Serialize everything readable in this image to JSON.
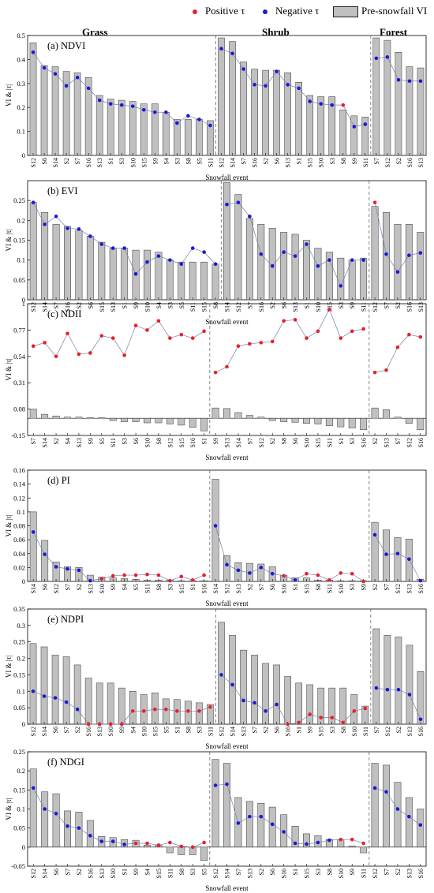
{
  "legend": {
    "positive_label": "Positive τ",
    "negative_label": "Negative τ",
    "pre_label": "Pre-snowfall VI",
    "positive_color": "#e8202a",
    "negative_color": "#1a1ad6",
    "bar_color": "#c0c0c0"
  },
  "columns": [
    "Grass",
    "Shrub",
    "Forest"
  ],
  "xlabel": "Snowfall event",
  "ylabel": "VI & |τ|",
  "chart_data": [
    {
      "type": "bar",
      "title": "(a) NDVI",
      "ylim": [
        0,
        0.5
      ],
      "yticks": [
        "0",
        "0.1",
        "0.2",
        "0.3",
        "0.4",
        "0.5"
      ],
      "yticks_values": [
        0,
        0.1,
        0.2,
        0.3,
        0.4,
        0.5
      ],
      "groups": [
        {
          "name": "Grass",
          "categories": [
            "S12",
            "S6",
            "S14",
            "S2",
            "S7",
            "S16",
            "S13",
            "S1",
            "S3",
            "S10",
            "S15",
            "S9",
            "S4",
            "S3",
            "S8",
            "S5",
            "S11"
          ],
          "bars": [
            0.47,
            0.375,
            0.37,
            0.35,
            0.345,
            0.325,
            0.25,
            0.235,
            0.23,
            0.225,
            0.215,
            0.215,
            0.18,
            0.15,
            0.15,
            0.15,
            0.145
          ],
          "tau": [
            -0.43,
            -0.365,
            -0.34,
            -0.29,
            -0.325,
            -0.28,
            -0.23,
            -0.215,
            -0.21,
            -0.205,
            -0.19,
            -0.18,
            -0.18,
            -0.135,
            -0.165,
            -0.15,
            -0.125
          ]
        },
        {
          "name": "Shrub",
          "categories": [
            "S12",
            "S14",
            "S7",
            "S16",
            "S2",
            "S6",
            "S13",
            "S1",
            "S15",
            "S10",
            "S3",
            "S8",
            "S9",
            "S11"
          ],
          "bars": [
            0.49,
            0.475,
            0.39,
            0.36,
            0.355,
            0.355,
            0.345,
            0.305,
            0.25,
            0.245,
            0.245,
            0.19,
            0.165,
            0.16
          ],
          "tau": [
            -0.445,
            -0.425,
            -0.36,
            -0.295,
            -0.29,
            -0.35,
            -0.295,
            -0.28,
            -0.225,
            -0.215,
            -0.21,
            0.21,
            -0.12,
            -0.13
          ]
        },
        {
          "name": "Forest",
          "categories": [
            "S7",
            "S12",
            "S2",
            "S16",
            "S13"
          ],
          "bars": [
            0.49,
            0.48,
            0.43,
            0.37,
            0.365
          ],
          "tau": [
            -0.405,
            -0.41,
            -0.315,
            -0.31,
            -0.31
          ]
        }
      ]
    },
    {
      "type": "bar",
      "title": "(b) EVI",
      "ylim": [
        0,
        0.3
      ],
      "yticks": [
        "0",
        "0.05",
        "0.1",
        "0.15",
        "0.2",
        "0.25"
      ],
      "yticks_values": [
        0,
        0.05,
        0.1,
        0.15,
        0.2,
        0.25
      ],
      "groups": [
        {
          "name": "Grass",
          "categories": [
            "S12",
            "S14",
            "S7",
            "S16",
            "S2",
            "S6",
            "S15",
            "S13",
            "S1",
            "S9",
            "S10",
            "S4",
            "S3",
            "S5",
            "S11",
            "S15",
            "S8"
          ],
          "bars": [
            0.245,
            0.22,
            0.19,
            0.185,
            0.175,
            0.16,
            0.145,
            0.13,
            0.13,
            0.125,
            0.125,
            0.12,
            0.1,
            0.095,
            0.095,
            0.095,
            0.09
          ],
          "tau": [
            -0.245,
            -0.19,
            -0.21,
            -0.18,
            -0.178,
            -0.16,
            -0.14,
            -0.13,
            -0.13,
            -0.065,
            -0.095,
            -0.11,
            -0.1,
            -0.09,
            -0.13,
            -0.12,
            -0.09
          ]
        },
        {
          "name": "Shrub",
          "categories": [
            "S14",
            "S12",
            "S7",
            "S16",
            "S2",
            "S6",
            "S13",
            "S1",
            "S10",
            "S15",
            "S3",
            "S9",
            "S11"
          ],
          "bars": [
            0.295,
            0.265,
            0.205,
            0.19,
            0.18,
            0.17,
            0.165,
            0.15,
            0.13,
            0.12,
            0.105,
            0.1,
            0.105
          ],
          "tau": [
            -0.24,
            -0.245,
            -0.21,
            -0.115,
            -0.085,
            -0.12,
            -0.11,
            -0.14,
            -0.085,
            -0.1,
            -0.035,
            -0.1,
            -0.1
          ]
        },
        {
          "name": "Forest",
          "categories": [
            "S12",
            "S7",
            "S2",
            "S16",
            "S13"
          ],
          "bars": [
            0.235,
            0.22,
            0.19,
            0.19,
            0.17
          ],
          "tau": [
            0.245,
            -0.115,
            -0.07,
            -0.112,
            -0.118
          ]
        }
      ]
    },
    {
      "type": "bar",
      "title": "(c) NDII",
      "ylim": [
        -0.15,
        1
      ],
      "yticks": [
        "-0.15",
        "0.08",
        "0.31",
        "0.54",
        "0.77",
        "1"
      ],
      "yticks_values": [
        -0.15,
        0.08,
        0.31,
        0.54,
        0.77,
        1
      ],
      "groups": [
        {
          "name": "Grass",
          "categories": [
            "S7",
            "S14",
            "S2",
            "S4",
            "S13",
            "S9",
            "S5",
            "S11",
            "S3",
            "S6",
            "S10",
            "S8",
            "S12",
            "S15",
            "S16",
            "S1"
          ],
          "bars": [
            0.08,
            0.035,
            0.02,
            0.01,
            0.01,
            0.005,
            0.005,
            -0.02,
            -0.03,
            -0.03,
            -0.04,
            -0.04,
            -0.05,
            -0.06,
            -0.08,
            -0.11
          ],
          "tau": [
            0.63,
            0.66,
            0.54,
            0.74,
            0.56,
            0.57,
            0.72,
            0.7,
            0.55,
            0.81,
            0.77,
            0.85,
            0.7,
            0.73,
            0.7,
            0.76
          ]
        },
        {
          "name": "Shrub",
          "categories": [
            "S9",
            "S13",
            "S14",
            "S7",
            "S12",
            "S2",
            "S8",
            "S6",
            "S10",
            "S15",
            "S11",
            "S1",
            "S3",
            "S16"
          ],
          "bars": [
            0.09,
            0.085,
            0.05,
            0.025,
            0.01,
            -0.02,
            -0.03,
            -0.035,
            -0.045,
            -0.05,
            -0.065,
            -0.075,
            -0.085,
            -0.1
          ],
          "tau": [
            0.4,
            0.45,
            0.63,
            0.65,
            0.66,
            0.67,
            0.85,
            0.86,
            0.7,
            0.76,
            0.95,
            0.7,
            0.76,
            0.78
          ]
        },
        {
          "name": "Forest",
          "categories": [
            "S2",
            "S13",
            "S7",
            "S12",
            "S16"
          ],
          "bars": [
            0.09,
            0.075,
            0.01,
            -0.045,
            -0.1
          ],
          "tau": [
            0.4,
            0.42,
            0.62,
            0.73,
            0.71
          ]
        }
      ]
    },
    {
      "type": "bar",
      "title": "(d) PI",
      "ylim": [
        0,
        0.16
      ],
      "yticks": [
        "0",
        "0.02",
        "0.04",
        "0.06",
        "0.08",
        "0.1",
        "0.12",
        "0.14",
        "0.16"
      ],
      "yticks_values": [
        0,
        0.02,
        0.04,
        0.06,
        0.08,
        0.1,
        0.12,
        0.14,
        0.16
      ],
      "groups": [
        {
          "name": "Grass",
          "categories": [
            "S14",
            "S6",
            "S12",
            "S7",
            "S2",
            "S13",
            "S10",
            "S9",
            "S4",
            "S5",
            "S11",
            "S8",
            "S3",
            "S15",
            "S1",
            "S16"
          ],
          "bars": [
            0.1,
            0.059,
            0.028,
            0.021,
            0.02,
            0.009,
            0.006,
            0.005,
            0.004,
            0.003,
            0.002,
            0.002,
            0.002,
            0.001,
            0.001,
            0.001
          ],
          "tau": [
            -0.071,
            -0.039,
            -0.021,
            -0.018,
            -0.016,
            -0.001,
            0.004,
            0.008,
            0.009,
            0.009,
            0.01,
            0.009,
            0.001,
            0.007,
            0.002,
            0.009
          ]
        },
        {
          "name": "Shrub",
          "categories": [
            "S14",
            "S12",
            "S13",
            "S2",
            "S7",
            "S6",
            "S16",
            "S1",
            "S15",
            "S8",
            "S11",
            "S10",
            "S3",
            "S9"
          ],
          "bars": [
            0.147,
            0.037,
            0.027,
            0.026,
            0.025,
            0.021,
            0.009,
            0.005,
            0.005,
            0.002,
            0.002,
            0.001,
            0.001,
            0.001
          ],
          "tau": [
            -0.08,
            -0.024,
            -0.016,
            -0.012,
            -0.02,
            -0.011,
            0.008,
            -0.002,
            0.011,
            0.009,
            0.002,
            0.012,
            0.011,
            0.0
          ]
        },
        {
          "name": "Forest",
          "categories": [
            "S2",
            "S7",
            "S12",
            "S13",
            "S16"
          ],
          "bars": [
            0.085,
            0.074,
            0.063,
            0.061,
            0.003
          ],
          "tau": [
            -0.067,
            -0.039,
            -0.04,
            -0.032,
            -0.001
          ]
        }
      ]
    },
    {
      "type": "bar",
      "title": "(e) NDPI",
      "ylim": [
        0,
        0.35
      ],
      "yticks": [
        "0",
        "0.05",
        "0.1",
        "0.15",
        "0.2",
        "0.25",
        "0.3",
        "0.35"
      ],
      "yticks_values": [
        0,
        0.05,
        0.1,
        0.15,
        0.2,
        0.25,
        0.3,
        0.35
      ],
      "groups": [
        {
          "name": "Grass",
          "categories": [
            "S12",
            "S14",
            "S6",
            "S7",
            "S2",
            "S16",
            "S13",
            "S10",
            "S9",
            "S4",
            "S10",
            "S15",
            "S5",
            "S1",
            "S8",
            "S3",
            "S11"
          ],
          "bars": [
            0.245,
            0.235,
            0.21,
            0.205,
            0.18,
            0.14,
            0.125,
            0.125,
            0.11,
            0.1,
            0.09,
            0.095,
            0.077,
            0.075,
            0.07,
            0.065,
            0.06
          ],
          "tau": [
            -0.1,
            -0.085,
            -0.08,
            -0.067,
            -0.045,
            0.0,
            0.0,
            0.0,
            0.0,
            0.04,
            0.04,
            0.045,
            0.045,
            0.04,
            0.04,
            0.04,
            0.052
          ]
        },
        {
          "name": "Shrub",
          "categories": [
            "S12",
            "S14",
            "S13",
            "S7",
            "S2",
            "S6",
            "S16",
            "S1",
            "S9",
            "S15",
            "S3",
            "S8",
            "S10",
            "S11"
          ],
          "bars": [
            0.31,
            0.27,
            0.225,
            0.21,
            0.185,
            0.18,
            0.145,
            0.125,
            0.12,
            0.11,
            0.11,
            0.11,
            0.09,
            0.055
          ],
          "tau": [
            -0.15,
            -0.12,
            -0.072,
            -0.065,
            -0.04,
            -0.06,
            0.0,
            0.005,
            0.03,
            0.02,
            0.02,
            0.005,
            0.04,
            0.048
          ]
        },
        {
          "name": "Forest",
          "categories": [
            "S7",
            "S12",
            "S2",
            "S13",
            "S16"
          ],
          "bars": [
            0.29,
            0.27,
            0.265,
            0.24,
            0.16
          ],
          "tau": [
            -0.11,
            -0.105,
            -0.105,
            -0.09,
            -0.015
          ]
        }
      ]
    },
    {
      "type": "bar",
      "title": "(f) NDGI",
      "ylim": [
        -0.05,
        0.25
      ],
      "yticks": [
        "-0.05",
        "0",
        "0.05",
        "0.1",
        "0.15",
        "0.2",
        "0.25"
      ],
      "yticks_values": [
        -0.05,
        0,
        0.05,
        0.1,
        0.15,
        0.2,
        0.25
      ],
      "groups": [
        {
          "name": "Grass",
          "categories": [
            "S12",
            "S14",
            "S6",
            "S7",
            "S2",
            "S16",
            "S13",
            "S10",
            "S1",
            "S9",
            "S4",
            "S15",
            "S11",
            "S8",
            "S3",
            "S5"
          ],
          "bars": [
            0.205,
            0.145,
            0.14,
            0.095,
            0.092,
            0.07,
            0.028,
            0.025,
            0.02,
            0.018,
            0.005,
            0.005,
            -0.015,
            -0.02,
            -0.02,
            -0.035
          ],
          "tau": [
            -0.155,
            -0.1,
            -0.088,
            -0.055,
            -0.05,
            -0.03,
            -0.015,
            -0.015,
            -0.007,
            0.01,
            0.01,
            0.005,
            0.012,
            0.002,
            0.0,
            0.012
          ]
        },
        {
          "name": "Shrub",
          "categories": [
            "S12",
            "S14",
            "S7",
            "S13",
            "S2",
            "S6",
            "S16",
            "S1",
            "S15",
            "S3",
            "S8",
            "S10",
            "S9",
            "S11"
          ],
          "bars": [
            0.23,
            0.22,
            0.13,
            0.12,
            0.115,
            0.105,
            0.085,
            0.055,
            0.035,
            0.03,
            0.02,
            0.02,
            0.003,
            -0.015
          ],
          "tau": [
            -0.162,
            -0.165,
            -0.063,
            -0.08,
            -0.08,
            -0.06,
            -0.04,
            -0.01,
            -0.008,
            -0.012,
            -0.018,
            0.02,
            0.02,
            0.01
          ]
        },
        {
          "name": "Forest",
          "categories": [
            "S12",
            "S7",
            "S2",
            "S13",
            "S16"
          ],
          "bars": [
            0.22,
            0.215,
            0.17,
            0.13,
            0.1
          ],
          "tau": [
            -0.155,
            -0.145,
            -0.1,
            -0.08,
            -0.058
          ]
        }
      ]
    }
  ]
}
